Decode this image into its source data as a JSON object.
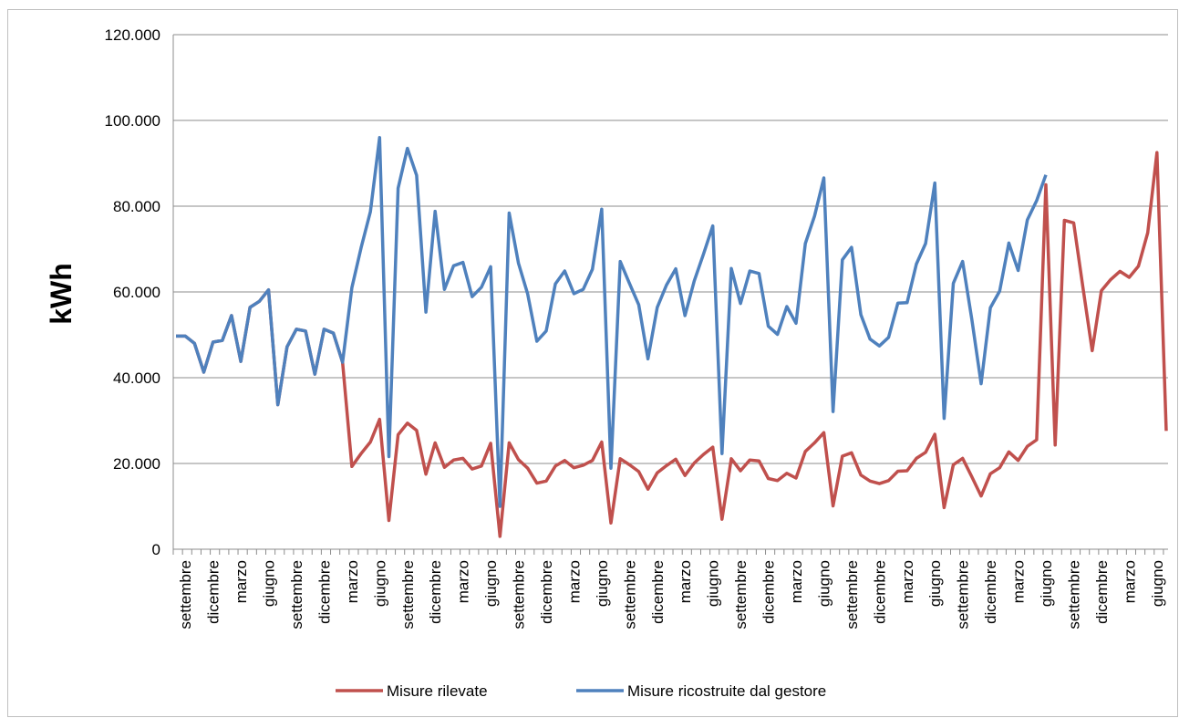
{
  "chart_data": {
    "type": "line",
    "title": "",
    "xlabel": "",
    "ylabel": "kWh",
    "ylim": [
      0,
      120000
    ],
    "y_ticks": [
      0,
      20000,
      40000,
      60000,
      80000,
      100000,
      120000
    ],
    "y_tick_labels": [
      "0",
      "20.000",
      "40.000",
      "60.000",
      "80.000",
      "100.000",
      "120.000"
    ],
    "grid": "horizontal",
    "legend_position": "bottom",
    "x_tick_labels": [
      "settembre",
      "dicembre",
      "marzo",
      "giugno",
      "settembre",
      "dicembre",
      "marzo",
      "giugno",
      "settembre",
      "dicembre",
      "marzo",
      "giugno",
      "settembre",
      "dicembre",
      "marzo",
      "giugno",
      "settembre",
      "dicembre",
      "marzo",
      "giugno",
      "settembre",
      "dicembre",
      "marzo",
      "giugno",
      "settembre",
      "dicembre",
      "marzo",
      "giugno",
      "settembre",
      "dicembre",
      "marzo",
      "giugno",
      "settembre",
      "dicembre",
      "marzo",
      "giugno"
    ],
    "colors": {
      "series_red": "#c0504d",
      "series_blue": "#4f81bd",
      "grid": "#8c8c8c"
    },
    "series": [
      {
        "name": "Misure rilevate",
        "color": "#c0504d",
        "values": [
          49700,
          49700,
          48000,
          41300,
          48300,
          48700,
          54500,
          43800,
          56400,
          57800,
          60500,
          33700,
          47200,
          51300,
          50900,
          40800,
          51300,
          50400,
          43600,
          19300,
          22300,
          25000,
          30300,
          6700,
          26700,
          29400,
          27700,
          17500,
          24800,
          19100,
          20800,
          21200,
          18700,
          19400,
          24700,
          3000,
          24800,
          20900,
          18900,
          15400,
          15900,
          19400,
          20700,
          19000,
          19600,
          20700,
          25000,
          6100,
          21100,
          19700,
          18100,
          14000,
          17800,
          19500,
          21000,
          17200,
          20100,
          22100,
          23800,
          7000,
          21100,
          18300,
          20800,
          20600,
          16500,
          16000,
          17700,
          16600,
          22800,
          24800,
          27200,
          10100,
          21700,
          22500,
          17300,
          15900,
          15300,
          16000,
          18200,
          18300,
          21200,
          22600,
          26800,
          9700,
          19700,
          21200,
          16900,
          12400,
          17600,
          19000,
          22700,
          20700,
          24000,
          25500,
          85000,
          24300,
          76700,
          76100,
          61100,
          46300,
          60300,
          62900,
          64800,
          63400,
          66000,
          73800,
          92500,
          27600
        ]
      },
      {
        "name": "Misure ricostruite dal gestore",
        "color": "#4f81bd",
        "values": [
          49700,
          49700,
          48000,
          41300,
          48300,
          48700,
          54500,
          43800,
          56400,
          57800,
          60500,
          33700,
          47200,
          51300,
          50900,
          40800,
          51300,
          50400,
          43600,
          61000,
          70300,
          78700,
          96000,
          21600,
          84200,
          93500,
          87200,
          55300,
          78800,
          60600,
          66100,
          66900,
          58900,
          61100,
          65900,
          10000,
          78400,
          66700,
          59500,
          48500,
          50900,
          61900,
          64900,
          59600,
          60600,
          65300,
          79300,
          18900,
          67100,
          62000,
          57000,
          44400,
          56400,
          61600,
          65400,
          54500,
          62600,
          68800,
          75400,
          22300,
          65500,
          57300,
          64900,
          64300,
          52000,
          50100,
          56600,
          52700,
          71300,
          77700,
          86600,
          32100,
          67500,
          70400,
          54700,
          49000,
          47400,
          49400,
          57400,
          57500,
          66500,
          71300,
          85400,
          30500,
          62000,
          67100,
          53600,
          38600,
          56300,
          60200,
          71400,
          65000,
          76800,
          81300,
          87300
        ]
      }
    ]
  }
}
